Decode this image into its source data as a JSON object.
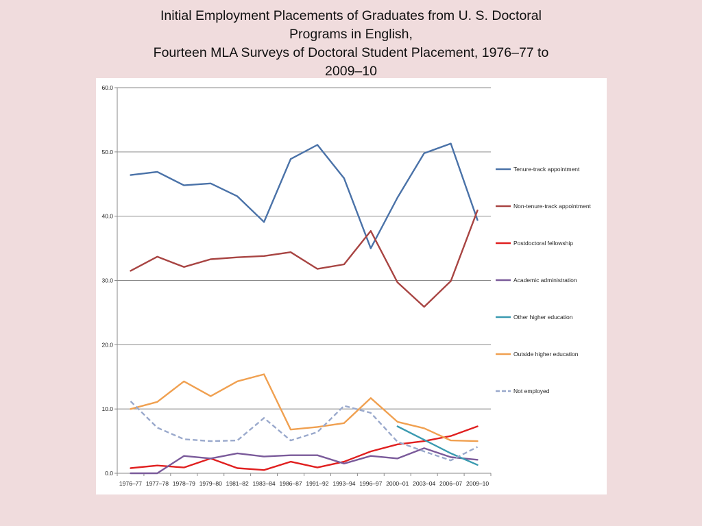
{
  "title_lines": [
    "Initial Employment Placements of Graduates from U. S. Doctoral",
    "Programs  in English,",
    "Fourteen MLA Surveys of Doctoral Student Placement, 1976–77 to",
    "2009–10"
  ],
  "chart_data": {
    "type": "line",
    "title": "Initial Employment Placements of Graduates from U. S. Doctoral Programs in English, Fourteen MLA Surveys of Doctoral Student Placement, 1976–77 to 2009–10",
    "xlabel": "",
    "ylabel": "",
    "ylim": [
      0,
      60
    ],
    "yticks": [
      "0.0",
      "10.0",
      "20.0",
      "30.0",
      "40.0",
      "50.0",
      "60.0"
    ],
    "grid": "horizontal",
    "legend_position": "right",
    "categories": [
      "1976–77",
      "1977–78",
      "1978–79",
      "1979–80",
      "1981–82",
      "1983–84",
      "1986–87",
      "1991–92",
      "1993–94",
      "1996–97",
      "2000–01",
      "2003–04",
      "2006–07",
      "2009–10"
    ],
    "series": [
      {
        "name": "Tenure-track appointment",
        "color": "#4a72a8",
        "dash": "solid",
        "values": [
          46.4,
          46.9,
          44.8,
          45.1,
          43.1,
          39.1,
          48.9,
          51.1,
          45.9,
          35.0,
          42.9,
          49.8,
          51.3,
          39.4
        ]
      },
      {
        "name": "Non-tenure-track appointment",
        "color": "#a84442",
        "dash": "solid",
        "values": [
          31.5,
          33.7,
          32.1,
          33.3,
          33.6,
          33.8,
          34.4,
          31.8,
          32.5,
          37.7,
          29.7,
          25.9,
          29.9,
          40.9
        ]
      },
      {
        "name": "Postdoctoral fellowship",
        "color": "#e01f1f",
        "dash": "solid",
        "values": [
          0.8,
          1.2,
          0.9,
          2.3,
          0.8,
          0.5,
          1.8,
          0.9,
          1.8,
          3.4,
          4.5,
          5.0,
          5.8,
          7.3
        ]
      },
      {
        "name": "Academic administration",
        "color": "#7a5a9a",
        "dash": "solid",
        "values": [
          0.0,
          0.0,
          2.7,
          2.3,
          3.1,
          2.6,
          2.8,
          2.8,
          1.5,
          2.7,
          2.3,
          3.9,
          2.5,
          2.1
        ]
      },
      {
        "name": "Other higher education",
        "color": "#3a9ab0",
        "dash": "solid",
        "values": [
          null,
          null,
          null,
          null,
          null,
          null,
          null,
          null,
          null,
          null,
          7.3,
          5.2,
          3.1,
          1.3
        ]
      },
      {
        "name": "Outside higher education",
        "color": "#f0a050",
        "dash": "solid",
        "values": [
          10.0,
          11.1,
          14.3,
          12.0,
          14.3,
          15.4,
          6.8,
          7.2,
          7.8,
          11.7,
          8.0,
          7.0,
          5.1,
          5.0
        ]
      },
      {
        "name": "Not employed",
        "color": "#9aa9cc",
        "dash": "dashed",
        "values": [
          11.2,
          7.1,
          5.3,
          5.0,
          5.1,
          8.6,
          5.1,
          6.4,
          10.5,
          9.4,
          4.9,
          3.4,
          2.0,
          4.1
        ]
      }
    ]
  }
}
